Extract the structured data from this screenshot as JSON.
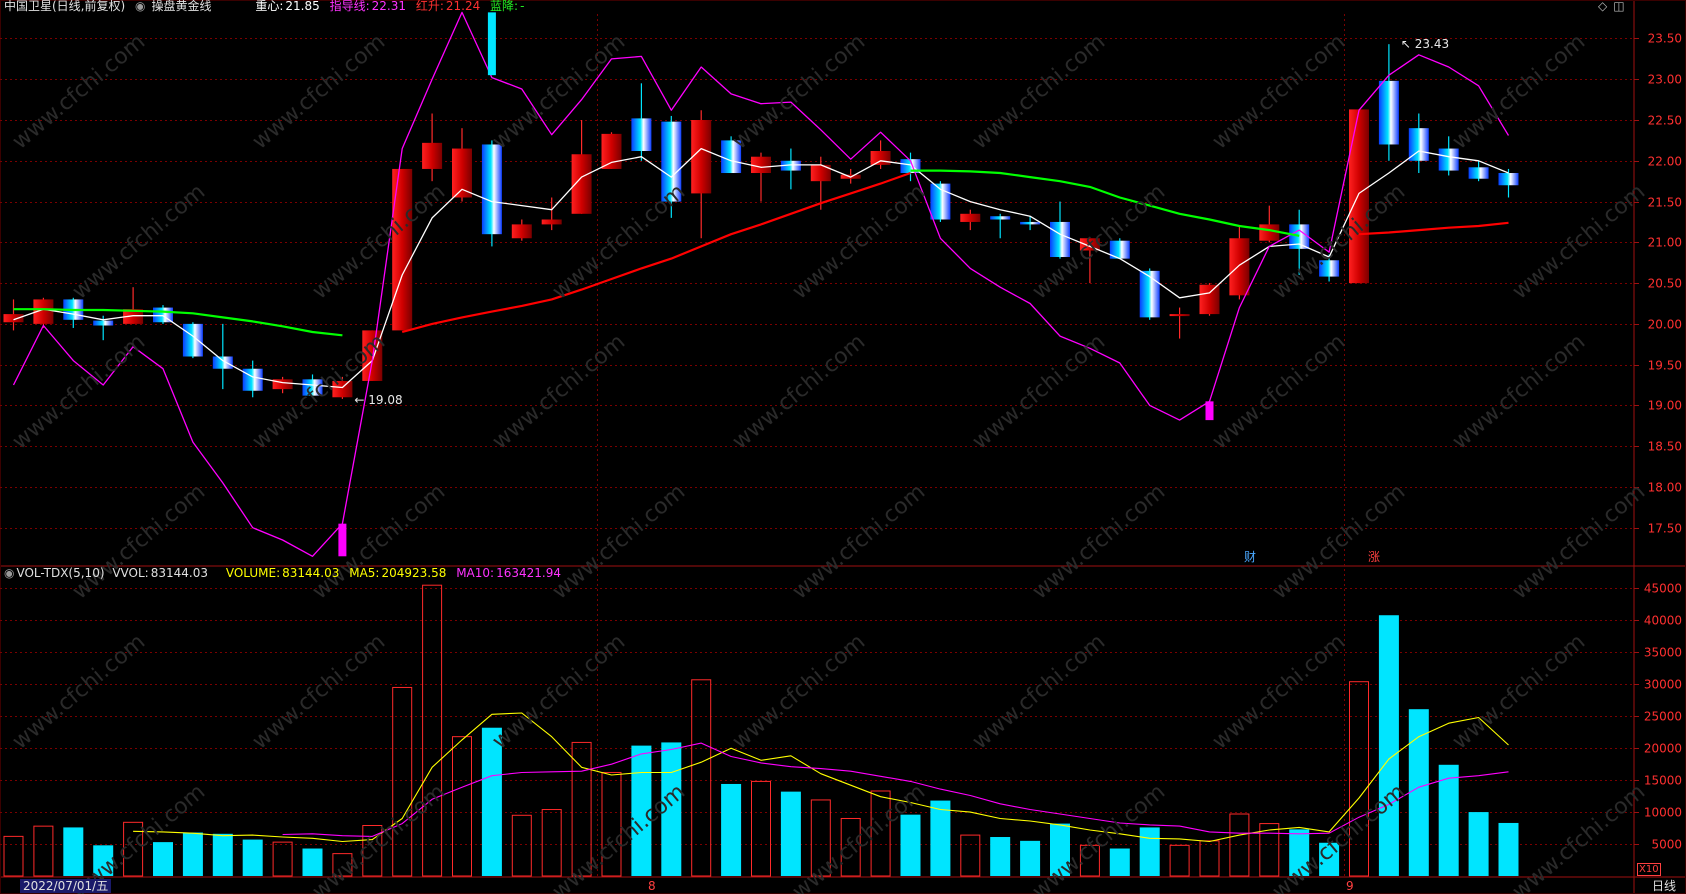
{
  "header": {
    "stock_title": "中国卫星(日线,前复权)",
    "indicator_name": "操盘黄金线",
    "zhongxin_label": "重心:",
    "zhongxin_value": "21.85",
    "zhidao_label": "指导线:",
    "zhidao_value": "22.31",
    "hongsheng_label": "红升:",
    "hongsheng_value": "21.24",
    "lanjiang_label": "蓝降:",
    "lanjiang_value": "-"
  },
  "vol_header": {
    "name": "VOL-TDX(5,10)",
    "vvol_label": "VVOL:",
    "vvol_value": "83144.03",
    "volume_label": "VOLUME:",
    "volume_value": "83144.03",
    "ma5_label": "MA5:",
    "ma5_value": "204923.58",
    "ma10_label": "MA10:",
    "ma10_value": "163421.94"
  },
  "footer": {
    "date_label": "2022/07/01/五",
    "month_8": "8",
    "month_9": "9",
    "period_label": "日线",
    "x10_label": "X10"
  },
  "markers": {
    "cai": "财",
    "zhang": "涨"
  },
  "colors": {
    "up": "#ff2a2a",
    "down": "#00e5ff",
    "zhongxin": "#ffffff",
    "zhidao": "#ff00ff",
    "hongsheng": "#ff0000",
    "lanjiang": "#00ff00",
    "ma5": "#ffff00",
    "ma10": "#ff00ff",
    "grid": "#7a0000",
    "axis": "#a01010"
  },
  "chart_data": [
    {
      "type": "candlestick",
      "y_ticks": [
        "17.50",
        "18.00",
        "18.50",
        "19.00",
        "19.50",
        "20.00",
        "20.50",
        "21.00",
        "21.50",
        "22.00",
        "22.50",
        "23.00",
        "23.50"
      ],
      "ylim": [
        17.08,
        23.8
      ],
      "annotations": [
        {
          "text": "19.08",
          "index": 11,
          "value": 19.08,
          "kind": "low"
        },
        {
          "text": "23.43",
          "index": 46,
          "value": 23.43,
          "kind": "high"
        }
      ],
      "candles": [
        {
          "o": 20.02,
          "h": 20.3,
          "l": 19.92,
          "c": 20.12
        },
        {
          "o": 20.0,
          "h": 20.32,
          "l": 19.95,
          "c": 20.3
        },
        {
          "o": 20.3,
          "h": 20.32,
          "l": 19.95,
          "c": 20.05
        },
        {
          "o": 20.04,
          "h": 20.1,
          "l": 19.8,
          "c": 19.98
        },
        {
          "o": 20.0,
          "h": 20.45,
          "l": 20.0,
          "c": 20.18
        },
        {
          "o": 20.2,
          "h": 20.23,
          "l": 20.0,
          "c": 20.02
        },
        {
          "o": 20.0,
          "h": 20.02,
          "l": 19.58,
          "c": 19.6
        },
        {
          "o": 19.6,
          "h": 20.0,
          "l": 19.2,
          "c": 19.45
        },
        {
          "o": 19.45,
          "h": 19.55,
          "l": 19.1,
          "c": 19.18
        },
        {
          "o": 19.2,
          "h": 19.35,
          "l": 19.15,
          "c": 19.32
        },
        {
          "o": 19.32,
          "h": 19.38,
          "l": 19.1,
          "c": 19.12
        },
        {
          "o": 19.1,
          "h": 19.35,
          "l": 19.08,
          "c": 19.3
        },
        {
          "o": 19.3,
          "h": 19.92,
          "l": 19.3,
          "c": 19.92
        },
        {
          "o": 19.92,
          "h": 21.9,
          "l": 19.92,
          "c": 21.9
        },
        {
          "o": 21.9,
          "h": 22.58,
          "l": 21.75,
          "c": 22.22
        },
        {
          "o": 21.55,
          "h": 22.4,
          "l": 21.5,
          "c": 22.15
        },
        {
          "o": 22.2,
          "h": 22.25,
          "l": 20.95,
          "c": 21.1
        },
        {
          "o": 21.05,
          "h": 21.28,
          "l": 21.02,
          "c": 21.22
        },
        {
          "o": 21.22,
          "h": 21.55,
          "l": 21.15,
          "c": 21.28
        },
        {
          "o": 21.35,
          "h": 22.5,
          "l": 21.35,
          "c": 22.08
        },
        {
          "o": 21.9,
          "h": 22.35,
          "l": 21.9,
          "c": 22.33
        },
        {
          "o": 22.52,
          "h": 22.95,
          "l": 22.0,
          "c": 22.12
        },
        {
          "o": 22.48,
          "h": 22.55,
          "l": 21.3,
          "c": 21.5
        },
        {
          "o": 21.6,
          "h": 22.62,
          "l": 21.05,
          "c": 22.5
        },
        {
          "o": 22.25,
          "h": 22.3,
          "l": 21.85,
          "c": 21.85
        },
        {
          "o": 21.85,
          "h": 22.1,
          "l": 21.5,
          "c": 22.05
        },
        {
          "o": 22.0,
          "h": 22.15,
          "l": 21.65,
          "c": 21.88
        },
        {
          "o": 21.75,
          "h": 22.05,
          "l": 21.4,
          "c": 21.95
        },
        {
          "o": 21.78,
          "h": 21.9,
          "l": 21.72,
          "c": 21.83
        },
        {
          "o": 21.95,
          "h": 22.25,
          "l": 21.9,
          "c": 22.12
        },
        {
          "o": 22.02,
          "h": 22.1,
          "l": 21.75,
          "c": 21.85
        },
        {
          "o": 21.72,
          "h": 21.75,
          "l": 21.25,
          "c": 21.28
        },
        {
          "o": 21.25,
          "h": 21.4,
          "l": 21.15,
          "c": 21.35
        },
        {
          "o": 21.32,
          "h": 21.35,
          "l": 21.05,
          "c": 21.28
        },
        {
          "o": 21.25,
          "h": 21.32,
          "l": 21.15,
          "c": 21.22
        },
        {
          "o": 21.25,
          "h": 21.5,
          "l": 20.8,
          "c": 20.82
        },
        {
          "o": 20.9,
          "h": 21.0,
          "l": 20.5,
          "c": 21.05
        },
        {
          "o": 21.02,
          "h": 21.05,
          "l": 20.8,
          "c": 20.8
        },
        {
          "o": 20.65,
          "h": 20.68,
          "l": 20.05,
          "c": 20.08
        },
        {
          "o": 20.12,
          "h": 20.2,
          "l": 19.82,
          "c": 20.12
        },
        {
          "o": 20.12,
          "h": 20.5,
          "l": 20.1,
          "c": 20.48
        },
        {
          "o": 20.35,
          "h": 21.2,
          "l": 20.3,
          "c": 21.05
        },
        {
          "o": 21.02,
          "h": 21.45,
          "l": 21.0,
          "c": 21.22
        },
        {
          "o": 21.22,
          "h": 21.4,
          "l": 20.6,
          "c": 20.92
        },
        {
          "o": 20.78,
          "h": 20.85,
          "l": 20.52,
          "c": 20.58
        },
        {
          "o": 20.5,
          "h": 22.63,
          "l": 20.5,
          "c": 22.63
        },
        {
          "o": 22.98,
          "h": 23.43,
          "l": 22.0,
          "c": 22.2
        },
        {
          "o": 22.4,
          "h": 22.58,
          "l": 21.85,
          "c": 22.0
        },
        {
          "o": 22.15,
          "h": 22.3,
          "l": 21.82,
          "c": 21.88
        },
        {
          "o": 21.92,
          "h": 22.0,
          "l": 21.75,
          "c": 21.78
        },
        {
          "o": 21.85,
          "h": 21.9,
          "l": 21.55,
          "c": 21.7
        }
      ],
      "series": [
        {
          "name": "重心",
          "values": [
            20.05,
            20.18,
            20.12,
            20.05,
            20.1,
            20.1,
            19.85,
            19.55,
            19.35,
            19.28,
            19.25,
            19.22,
            19.55,
            20.6,
            21.3,
            21.65,
            21.5,
            21.45,
            21.4,
            21.8,
            21.98,
            22.05,
            21.8,
            22.15,
            22.0,
            21.92,
            21.95,
            21.95,
            21.8,
            22.0,
            21.95,
            21.65,
            21.5,
            21.4,
            21.32,
            21.1,
            20.95,
            20.8,
            20.58,
            20.32,
            20.38,
            20.72,
            20.95,
            20.98,
            20.82,
            21.6,
            21.85,
            22.12,
            22.05,
            22.0,
            21.85
          ]
        },
        {
          "name": "指导线",
          "values": [
            19.25,
            19.98,
            19.55,
            19.25,
            19.72,
            19.45,
            18.55,
            18.05,
            17.5,
            17.35,
            17.15,
            17.55,
            19.55,
            22.15,
            23.0,
            23.82,
            23.02,
            22.88,
            22.32,
            22.75,
            23.25,
            23.28,
            22.62,
            23.15,
            22.82,
            22.7,
            22.72,
            22.38,
            22.02,
            22.35,
            22.0,
            21.05,
            20.68,
            20.45,
            20.25,
            19.85,
            19.7,
            19.52,
            19.0,
            18.82,
            19.05,
            20.2,
            20.95,
            21.15,
            20.88,
            22.62,
            23.05,
            23.3,
            23.15,
            22.92,
            22.31
          ]
        },
        {
          "name": "红升",
          "values": [
            null,
            null,
            null,
            null,
            null,
            null,
            null,
            null,
            null,
            null,
            null,
            null,
            null,
            19.9,
            20.0,
            20.08,
            20.15,
            20.22,
            20.3,
            20.42,
            20.55,
            20.68,
            20.8,
            20.95,
            21.1,
            21.22,
            21.35,
            21.48,
            21.6,
            21.72,
            21.85,
            null,
            null,
            null,
            null,
            null,
            null,
            null,
            null,
            null,
            null,
            null,
            null,
            null,
            null,
            21.1,
            21.12,
            21.15,
            21.18,
            21.2,
            21.24
          ]
        },
        {
          "name": "蓝降",
          "values": [
            20.18,
            20.18,
            20.17,
            20.17,
            20.16,
            20.15,
            20.13,
            20.08,
            20.03,
            19.97,
            19.9,
            19.86,
            null,
            null,
            null,
            null,
            null,
            null,
            null,
            null,
            null,
            null,
            null,
            null,
            null,
            null,
            null,
            null,
            null,
            null,
            21.88,
            21.88,
            21.87,
            21.85,
            21.8,
            21.75,
            21.68,
            21.55,
            21.45,
            21.35,
            21.28,
            21.2,
            21.15,
            21.08,
            null,
            null,
            null,
            null,
            null,
            null,
            null
          ]
        }
      ],
      "signal_markers": [
        {
          "index": 11,
          "from": 17.15,
          "to": 17.55,
          "color": "#ff00ff"
        },
        {
          "index": 16,
          "from": 23.05,
          "to": 23.82,
          "color": "#00e5ff"
        },
        {
          "index": 40,
          "from": 18.82,
          "to": 19.05,
          "color": "#ff00ff"
        }
      ]
    },
    {
      "type": "bar",
      "y_ticks": [
        "5000",
        "10000",
        "15000",
        "20000",
        "25000",
        "30000",
        "35000",
        "40000",
        "45000"
      ],
      "ylim": [
        0,
        46000
      ],
      "volumes": [
        6200,
        7800,
        7600,
        4800,
        8400,
        5300,
        6800,
        6600,
        5700,
        5300,
        4300,
        3500,
        7900,
        29500,
        45500,
        21800,
        23200,
        9500,
        10400,
        20900,
        16200,
        20400,
        20900,
        30700,
        14400,
        14800,
        13200,
        11900,
        9000,
        13300,
        9600,
        11800,
        6400,
        6100,
        5500,
        8200,
        4800,
        4300,
        7600,
        4800,
        5500,
        9700,
        8200,
        7300,
        5200,
        30400,
        40800,
        26100,
        17400,
        10000,
        8300
      ],
      "ma5": [
        null,
        null,
        null,
        null,
        7000,
        6900,
        6700,
        6300,
        6400,
        6100,
        5900,
        5400,
        5700,
        9000,
        17000,
        21300,
        25300,
        25500,
        21800,
        17000,
        15800,
        16200,
        16200,
        17800,
        20000,
        18100,
        18800,
        16000,
        14200,
        12400,
        11500,
        10400,
        10000,
        9000,
        8600,
        8000,
        7200,
        6600,
        5900,
        5800,
        5400,
        6400,
        7200,
        7600,
        6900,
        12200,
        18300,
        21800,
        23900,
        24800,
        20500
      ],
      "ma10": [
        null,
        null,
        null,
        null,
        null,
        null,
        null,
        null,
        null,
        6500,
        6600,
        6300,
        6200,
        8200,
        12000,
        13900,
        15700,
        16200,
        16300,
        16400,
        17500,
        19100,
        19800,
        20800,
        18700,
        17700,
        17100,
        16800,
        16400,
        15600,
        14800,
        13600,
        12600,
        11300,
        10400,
        9700,
        9000,
        8300,
        8000,
        7800,
        6900,
        6700,
        6700,
        6600,
        6700,
        9200,
        11200,
        13900,
        15300,
        15700,
        16300
      ]
    }
  ]
}
